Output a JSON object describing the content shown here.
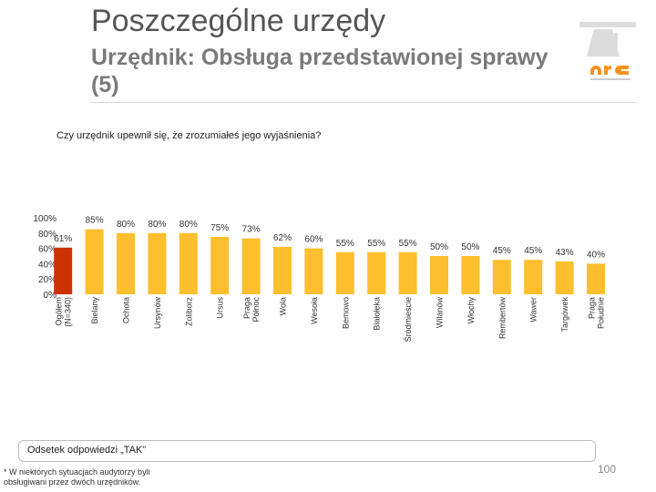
{
  "slide": {
    "title": "Poszczególne urzędy",
    "subtitle": "Urzędnik: Obsługa przedstawionej sprawy (5)",
    "question": "Czy urzędnik upewnił się, że zrozumiałeś jego wyjaśnienia?",
    "legend": "Odsetek odpowiedzi „TAK”",
    "footnote": "* W niektórych sytuacjach audytorzy byli obsługiwani przez dwóch urzędników.",
    "page_number": "100"
  },
  "colors": {
    "bar": "#fdbf2d",
    "bar_highlight": "#cc3300",
    "logo_orange": "#f7931e"
  },
  "chart_data": {
    "type": "bar",
    "title": "",
    "xlabel": "",
    "ylabel": "",
    "ylim": [
      0,
      100
    ],
    "yticks": [
      "0%",
      "20%",
      "40%",
      "60%",
      "80%",
      "100%"
    ],
    "categories": [
      "Ogółem (N=340)",
      "Bielany",
      "Ochota",
      "Ursynów",
      "Żoliborz",
      "Ursus",
      "Praga Północ",
      "Wola",
      "Wesoła",
      "Bemowo",
      "Białołęka",
      "Śródmieście",
      "Wilanów",
      "Włochy",
      "Rembertów",
      "Wawer",
      "Targówek",
      "Praga Południe"
    ],
    "values": [
      61,
      85,
      80,
      80,
      80,
      75,
      73,
      62,
      60,
      55,
      55,
      55,
      50,
      50,
      45,
      45,
      43,
      40
    ],
    "data_labels": [
      "61%",
      "85%",
      "80%",
      "80%",
      "80%",
      "75%",
      "73%",
      "62%",
      "60%",
      "55%",
      "55%",
      "55%",
      "50%",
      "50%",
      "45%",
      "45%",
      "43%",
      "40%"
    ],
    "highlight_index": 0
  }
}
